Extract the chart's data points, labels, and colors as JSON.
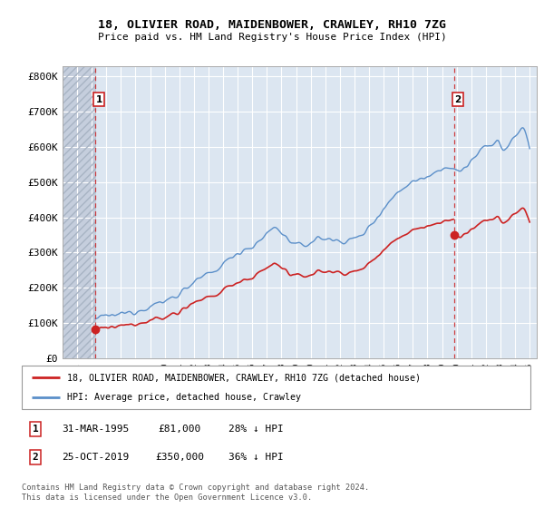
{
  "title": "18, OLIVIER ROAD, MAIDENBOWER, CRAWLEY, RH10 7ZG",
  "subtitle": "Price paid vs. HM Land Registry's House Price Index (HPI)",
  "ylabel_ticks": [
    "£0",
    "£100K",
    "£200K",
    "£300K",
    "£400K",
    "£500K",
    "£600K",
    "£700K",
    "£800K"
  ],
  "ytick_values": [
    0,
    100000,
    200000,
    300000,
    400000,
    500000,
    600000,
    700000,
    800000
  ],
  "ylim": [
    0,
    830000
  ],
  "xlim_start": 1993.0,
  "xlim_end": 2025.5,
  "hpi_color": "#5b8fc9",
  "price_color": "#cc2222",
  "dashed_line_color": "#cc2222",
  "background_color": "#dce6f1",
  "hatch_region_color": "#c5cedd",
  "grid_color": "#ffffff",
  "sale1_x": 1995.25,
  "sale1_y": 81000,
  "sale1_label": "1",
  "sale2_x": 2019.82,
  "sale2_y": 350000,
  "sale2_label": "2",
  "legend_line1": "18, OLIVIER ROAD, MAIDENBOWER, CRAWLEY, RH10 7ZG (detached house)",
  "legend_line2": "HPI: Average price, detached house, Crawley",
  "table_row1": [
    "1",
    "31-MAR-1995",
    "£81,000",
    "28% ↓ HPI"
  ],
  "table_row2": [
    "2",
    "25-OCT-2019",
    "£350,000",
    "36% ↓ HPI"
  ],
  "footnote": "Contains HM Land Registry data © Crown copyright and database right 2024.\nThis data is licensed under the Open Government Licence v3.0."
}
